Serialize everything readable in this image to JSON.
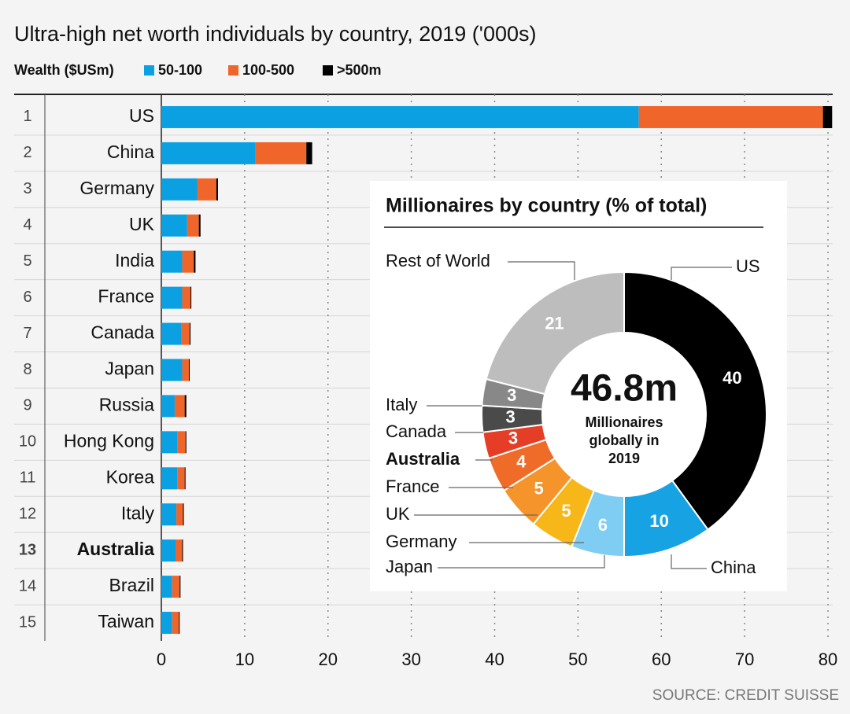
{
  "chart_data": [
    {
      "type": "bar",
      "orientation": "horizontal",
      "stacked": true,
      "title": "Ultra-high net worth individuals by country, 2019 ('000s)",
      "legend_title": "Wealth ($USm)",
      "source": "SOURCE: CREDIT SUISSE",
      "ranks": [
        1,
        2,
        3,
        4,
        5,
        6,
        7,
        8,
        9,
        10,
        11,
        12,
        13,
        14,
        15
      ],
      "categories": [
        "US",
        "China",
        "Germany",
        "UK",
        "India",
        "France",
        "Canada",
        "Japan",
        "Russia",
        "Hong Kong",
        "Korea",
        "Italy",
        "Australia",
        "Brazil",
        "Taiwan"
      ],
      "highlight": "Australia",
      "series": [
        {
          "name": "50-100",
          "color": "#0aa0e2",
          "values": [
            57.3,
            11.3,
            4.3,
            3.1,
            2.5,
            2.5,
            2.4,
            2.5,
            1.6,
            1.9,
            1.9,
            1.8,
            1.7,
            1.3,
            1.3
          ]
        },
        {
          "name": "100-500",
          "color": "#f0652a",
          "values": [
            22.1,
            6.1,
            2.3,
            1.4,
            1.4,
            1.0,
            1.0,
            0.8,
            1.2,
            1.0,
            0.9,
            0.8,
            0.8,
            0.9,
            0.8
          ]
        },
        {
          "name": ">500m",
          "color": "#000000",
          "values": [
            1.1,
            0.7,
            0.2,
            0.2,
            0.2,
            0.1,
            0.1,
            0.1,
            0.2,
            0.1,
            0.1,
            0.1,
            0.1,
            0.1,
            0.1
          ]
        }
      ],
      "xlim": [
        0,
        80
      ],
      "xticks": [
        0,
        10,
        20,
        30,
        40,
        50,
        60,
        70,
        80
      ],
      "grid": true
    },
    {
      "type": "pie",
      "donut": true,
      "title": "Millionaires by country (% of total)",
      "center_value": "46.8m",
      "center_text": [
        "Millionaires",
        "globally in",
        "2019"
      ],
      "categories": [
        "US",
        "China",
        "Japan",
        "Germany",
        "UK",
        "France",
        "Australia",
        "Canada",
        "Italy",
        "Rest of World"
      ],
      "values": [
        40,
        10,
        6,
        5,
        5,
        4,
        3,
        3,
        3,
        21
      ],
      "colors": [
        "#000000",
        "#17a2e4",
        "#7fcdf3",
        "#f8b719",
        "#f4942a",
        "#ef6b28",
        "#e63e26",
        "#4a4a4a",
        "#888888",
        "#bdbdbd"
      ],
      "highlight": "Australia"
    }
  ]
}
